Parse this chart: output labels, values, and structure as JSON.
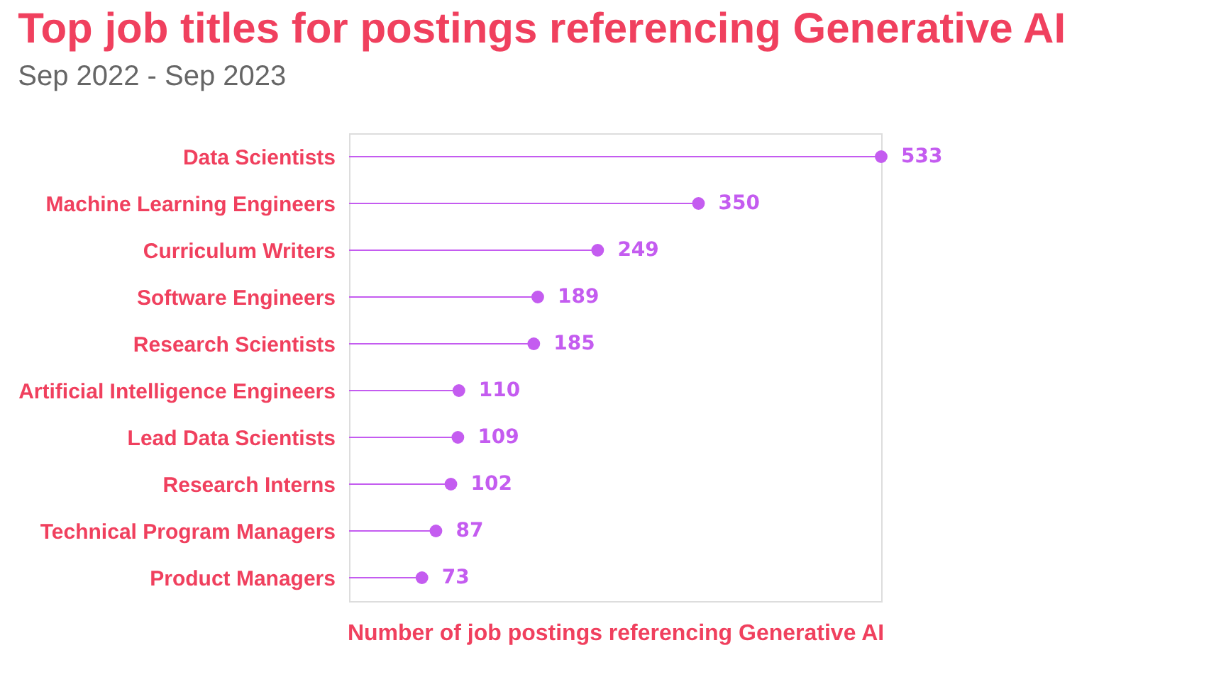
{
  "chart_data": {
    "type": "lollipop",
    "title": "Top job titles for postings referencing Generative AI",
    "subtitle": "Sep 2022 - Sep 2023",
    "xlabel": "Number of job postings referencing Generative AI",
    "orientation": "horizontal",
    "categories": [
      "Data Scientists",
      "Machine Learning Engineers",
      "Curriculum Writers",
      "Software Engineers",
      "Research Scientists",
      "Artificial Intelligence Engineers",
      "Lead Data Scientists",
      "Research Interns",
      "Technical Program Managers",
      "Product Managers"
    ],
    "values": [
      533,
      350,
      249,
      189,
      185,
      110,
      109,
      102,
      87,
      73
    ],
    "color": "#c45cf0",
    "data_labels": true,
    "marker": "circle"
  }
}
